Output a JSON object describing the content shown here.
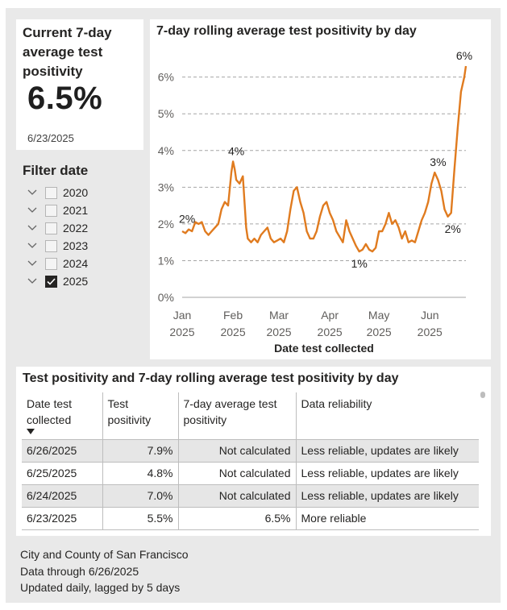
{
  "kpi": {
    "title": "Current 7-day average test positivity",
    "value": "6.5%",
    "date": "6/23/2025"
  },
  "filter": {
    "title": "Filter date",
    "items": [
      {
        "label": "2020",
        "checked": false
      },
      {
        "label": "2021",
        "checked": false
      },
      {
        "label": "2022",
        "checked": false
      },
      {
        "label": "2023",
        "checked": false
      },
      {
        "label": "2024",
        "checked": false
      },
      {
        "label": "2025",
        "checked": true
      }
    ]
  },
  "chart": {
    "title": "7-day rolling average test positivity by day",
    "xlabel": "Date test collected"
  },
  "chart_data": {
    "type": "line",
    "title": "7-day rolling average test positivity by day",
    "xlabel": "Date test collected",
    "ylabel": "",
    "ylim": [
      0,
      6.3
    ],
    "xlim": [
      "2025-01-01",
      "2025-06-23"
    ],
    "grid": true,
    "line_color": "#e07b1f",
    "y_ticks": [
      "0%",
      "1%",
      "2%",
      "3%",
      "4%",
      "5%",
      "6%"
    ],
    "x_ticks": [
      {
        "label": "Jan",
        "year": "2025",
        "date": "2025-01-01"
      },
      {
        "label": "Feb",
        "year": "2025",
        "date": "2025-02-01"
      },
      {
        "label": "Mar",
        "year": "2025",
        "date": "2025-03-01"
      },
      {
        "label": "Apr",
        "year": "2025",
        "date": "2025-04-01"
      },
      {
        "label": "May",
        "year": "2025",
        "date": "2025-05-01"
      },
      {
        "label": "Jun",
        "year": "2025",
        "date": "2025-06-01"
      }
    ],
    "series": [
      {
        "x": [
          "2025-01-01",
          "2025-01-03",
          "2025-01-05",
          "2025-01-07",
          "2025-01-09",
          "2025-01-11",
          "2025-01-13",
          "2025-01-15",
          "2025-01-17",
          "2025-01-19",
          "2025-01-21",
          "2025-01-23",
          "2025-01-25",
          "2025-01-27",
          "2025-01-29",
          "2025-01-31",
          "2025-02-01",
          "2025-02-02",
          "2025-02-03",
          "2025-02-05",
          "2025-02-07",
          "2025-02-09",
          "2025-02-10",
          "2025-02-12",
          "2025-02-14",
          "2025-02-16",
          "2025-02-18",
          "2025-02-20",
          "2025-02-22",
          "2025-02-24",
          "2025-02-26",
          "2025-02-28",
          "2025-03-02",
          "2025-03-04",
          "2025-03-06",
          "2025-03-08",
          "2025-03-10",
          "2025-03-12",
          "2025-03-14",
          "2025-03-16",
          "2025-03-18",
          "2025-03-20",
          "2025-03-22",
          "2025-03-24",
          "2025-03-26",
          "2025-03-28",
          "2025-03-30",
          "2025-04-01",
          "2025-04-03",
          "2025-04-05",
          "2025-04-07",
          "2025-04-09",
          "2025-04-11",
          "2025-04-13",
          "2025-04-15",
          "2025-04-17",
          "2025-04-19",
          "2025-04-21",
          "2025-04-23",
          "2025-04-25",
          "2025-04-27",
          "2025-04-29",
          "2025-05-01",
          "2025-05-03",
          "2025-05-05",
          "2025-05-07",
          "2025-05-09",
          "2025-05-11",
          "2025-05-13",
          "2025-05-15",
          "2025-05-17",
          "2025-05-19",
          "2025-05-21",
          "2025-05-23",
          "2025-05-25",
          "2025-05-27",
          "2025-05-29",
          "2025-05-31",
          "2025-06-02",
          "2025-06-04",
          "2025-06-06",
          "2025-06-08",
          "2025-06-10",
          "2025-06-12",
          "2025-06-14",
          "2025-06-16",
          "2025-06-18",
          "2025-06-20",
          "2025-06-22",
          "2025-06-23"
        ],
        "values": [
          1.8,
          1.75,
          1.85,
          1.8,
          2.05,
          2.0,
          2.05,
          1.8,
          1.7,
          1.8,
          1.9,
          2.0,
          2.4,
          2.6,
          2.5,
          3.4,
          3.7,
          3.5,
          3.2,
          3.1,
          3.3,
          1.9,
          1.6,
          1.5,
          1.6,
          1.5,
          1.7,
          1.8,
          1.9,
          1.6,
          1.5,
          1.55,
          1.6,
          1.5,
          1.8,
          2.4,
          2.9,
          3.0,
          2.6,
          2.3,
          1.8,
          1.6,
          1.6,
          1.8,
          2.2,
          2.5,
          2.6,
          2.3,
          2.1,
          1.8,
          1.65,
          1.5,
          2.1,
          1.8,
          1.6,
          1.4,
          1.25,
          1.3,
          1.45,
          1.3,
          1.25,
          1.35,
          1.8,
          1.8,
          2.0,
          2.3,
          2.0,
          2.1,
          1.9,
          1.6,
          1.8,
          1.5,
          1.55,
          1.5,
          1.8,
          2.1,
          2.3,
          2.6,
          3.1,
          3.4,
          3.2,
          2.9,
          2.4,
          2.2,
          2.3,
          3.5,
          4.6,
          5.6,
          6.0,
          6.3
        ]
      }
    ],
    "annotations": [
      {
        "text": "2%",
        "x": "2025-01-03",
        "y": 1.85
      },
      {
        "text": "4%",
        "x": "2025-02-03",
        "y": 3.7
      },
      {
        "text": "1%",
        "x": "2025-04-19",
        "y": 1.25
      },
      {
        "text": "3%",
        "x": "2025-06-06",
        "y": 3.4
      },
      {
        "text": "2%",
        "x": "2025-06-15",
        "y": 2.2
      },
      {
        "text": "6%",
        "x": "2025-06-22",
        "y": 6.3
      }
    ]
  },
  "table": {
    "title": "Test positivity and 7-day rolling average test positivity by day",
    "headers": [
      "Date test collected",
      "Test positivity",
      "7-day average test positivity",
      "Data reliability"
    ],
    "rows": [
      [
        "6/26/2025",
        "7.9%",
        "Not calculated",
        "Less reliable, updates are likely"
      ],
      [
        "6/25/2025",
        "4.8%",
        "Not calculated",
        "Less reliable, updates are likely"
      ],
      [
        "6/24/2025",
        "7.0%",
        "Not calculated",
        "Less reliable, updates are likely"
      ],
      [
        "6/23/2025",
        "5.5%",
        "6.5%",
        "More reliable"
      ]
    ]
  },
  "footer": {
    "lines": [
      "City and County of San Francisco",
      "Data through 6/26/2025",
      "Updated daily, lagged by 5 days"
    ]
  },
  "colors": {
    "accent": "#e07b1f",
    "background": "#e9e9e9",
    "card": "#ffffff",
    "row_shade": "#e6e6e6"
  }
}
